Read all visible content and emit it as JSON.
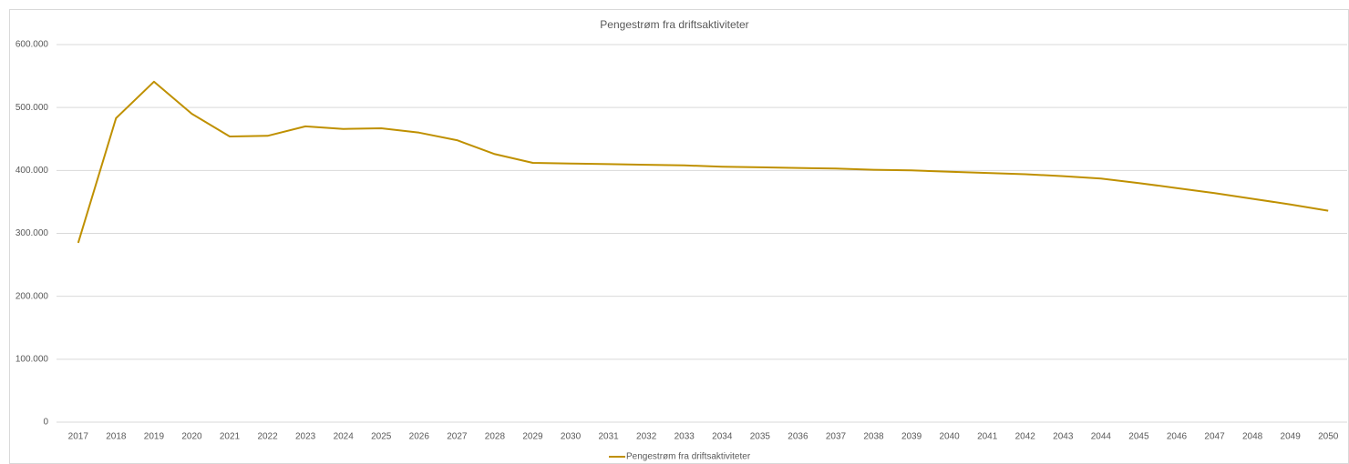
{
  "chart_data": {
    "type": "line",
    "title": "Pengestrøm fra driftsaktiviteter",
    "categories": [
      "2017",
      "2018",
      "2019",
      "2020",
      "2021",
      "2022",
      "2023",
      "2024",
      "2025",
      "2026",
      "2027",
      "2028",
      "2029",
      "2030",
      "2031",
      "2032",
      "2033",
      "2034",
      "2035",
      "2036",
      "2037",
      "2038",
      "2039",
      "2040",
      "2041",
      "2042",
      "2043",
      "2044",
      "2045",
      "2046",
      "2047",
      "2048",
      "2049",
      "2050"
    ],
    "series": [
      {
        "name": "Pengestrøm fra driftsaktiviteter",
        "color": "#bf9000",
        "values": [
          285000,
          483000,
          541000,
          490000,
          454000,
          455000,
          470000,
          466000,
          467000,
          460000,
          448000,
          426000,
          412000,
          411000,
          410000,
          409000,
          408000,
          406000,
          405000,
          404000,
          403000,
          401000,
          400000,
          398000,
          396000,
          394000,
          391000,
          387000,
          380000,
          372000,
          364000,
          355000,
          346000,
          336000
        ]
      }
    ],
    "ylim": [
      0,
      600000
    ],
    "yticks": [
      0,
      {
        "value": 100000,
        "label": "100.000"
      },
      {
        "value": 200000,
        "label": "200.000"
      },
      {
        "value": 300000,
        "label": "300.000"
      },
      {
        "value": 400000,
        "label": "400.000"
      },
      {
        "value": 500000,
        "label": "500.000"
      },
      {
        "value": 600000,
        "label": "600.000"
      }
    ],
    "grid": true,
    "legend": "bottom"
  }
}
